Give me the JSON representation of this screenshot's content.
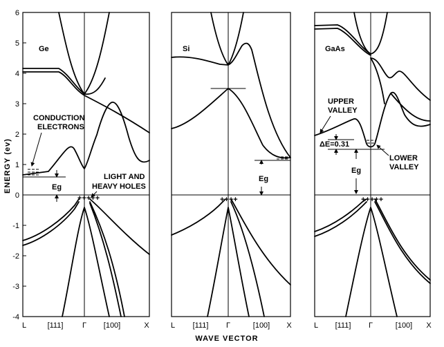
{
  "y_axis": {
    "label": "ENERGY (ev)",
    "ticks": [
      "6",
      "5",
      "4",
      "3",
      "2",
      "1",
      "0",
      "-1",
      "-2",
      "-3",
      "-4"
    ]
  },
  "x_axis": {
    "label": "WAVE VECTOR",
    "ticks": [
      "L",
      "[111]",
      "Γ",
      "[100]",
      "X"
    ]
  },
  "panels": {
    "ge": {
      "title": "Ge",
      "annotations": {
        "conduction_line1": "CONDUCTION",
        "conduction_line2": "ELECTRONS",
        "gap": "Eg",
        "holes_line1": "LIGHT AND",
        "holes_line2": "HEAVY HOLES"
      }
    },
    "si": {
      "title": "Si",
      "annotations": {
        "gap": "Eg"
      }
    },
    "gaas": {
      "title": "GaAs",
      "annotations": {
        "upper_line1": "UPPER",
        "upper_line2": "VALLEY",
        "delta": "ΔE=0.31",
        "lower_line1": "LOWER",
        "lower_line2": "VALLEY",
        "gap": "Eg"
      }
    }
  }
}
